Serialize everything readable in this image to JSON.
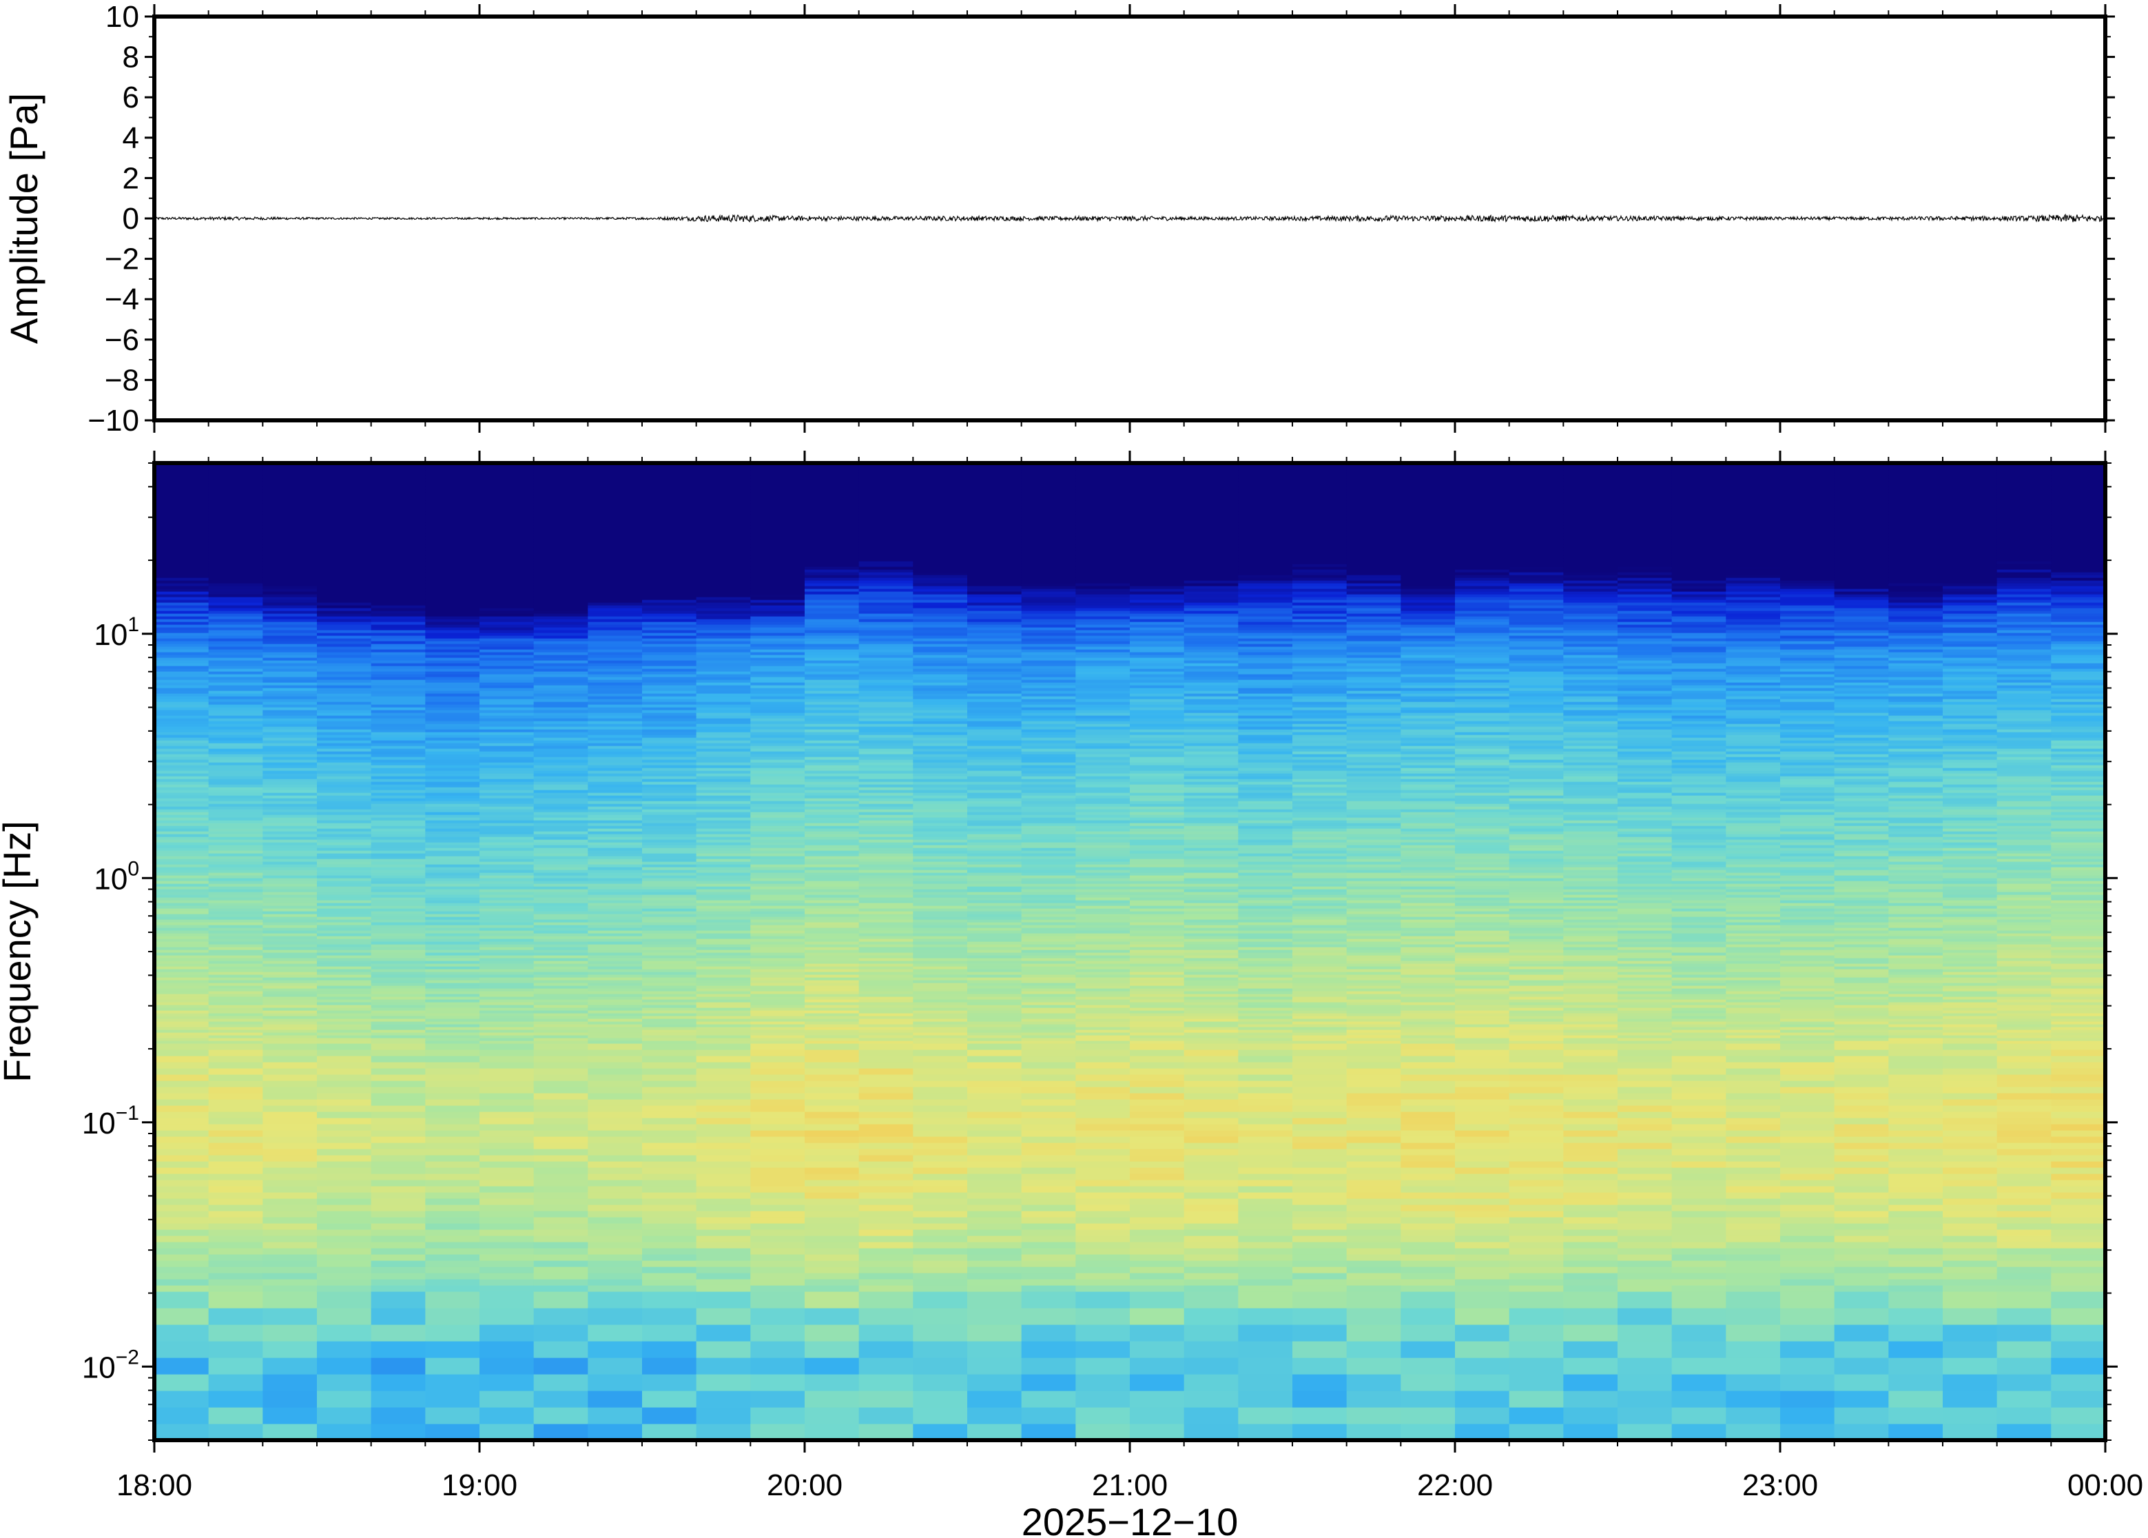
{
  "chart_data": [
    {
      "type": "line",
      "ylabel": "Amplitude [Pa]",
      "ylim": [
        -10,
        10
      ],
      "yticks": [
        10,
        8,
        6,
        4,
        2,
        0,
        -2,
        -4,
        -6,
        -8,
        -10
      ],
      "ytick_labels": [
        "10",
        "8",
        "6",
        "4",
        "2",
        "0",
        "−2",
        "−4",
        "−6",
        "−8",
        "−10"
      ],
      "xlim": [
        "18:00",
        "00:00"
      ],
      "grid": false,
      "series_color": "#000000",
      "noise_envelope": {
        "x_hours": [
          18.0,
          18.25,
          18.5,
          18.75,
          19.0,
          19.25,
          19.5,
          19.6,
          19.7,
          19.8,
          19.9,
          20.0,
          20.25,
          20.5,
          20.75,
          21.0,
          21.25,
          21.5,
          21.75,
          22.0,
          22.25,
          22.5,
          22.75,
          23.0,
          23.25,
          23.5,
          23.75,
          23.9,
          24.0
        ],
        "amplitude_pa": [
          0.06,
          0.08,
          0.05,
          0.05,
          0.05,
          0.05,
          0.06,
          0.08,
          0.16,
          0.18,
          0.14,
          0.12,
          0.1,
          0.12,
          0.1,
          0.12,
          0.08,
          0.1,
          0.14,
          0.14,
          0.16,
          0.12,
          0.1,
          0.08,
          0.08,
          0.1,
          0.12,
          0.2,
          0.14
        ]
      }
    },
    {
      "type": "heatmap",
      "ylabel": "Frequency [Hz]",
      "xlabel": "2025−12−10",
      "yscale": "log",
      "ylim_hz": [
        0.005,
        50
      ],
      "ytick_values": [
        10,
        1,
        0.1,
        0.01
      ],
      "ytick_base": [
        "10",
        "10",
        "10",
        "10"
      ],
      "ytick_exponents": [
        "1",
        "0",
        "−1",
        "−2"
      ],
      "xtick_labels": [
        "18:00",
        "19:00",
        "20:00",
        "21:00",
        "22:00",
        "23:00",
        "00:00"
      ],
      "xtick_hours": [
        18,
        19,
        20,
        21,
        22,
        23,
        24
      ],
      "colormap": [
        "#0c057c",
        "#0a23d6",
        "#1e78f0",
        "#37b4f0",
        "#6ed8d2",
        "#aae6a0",
        "#e6e678",
        "#f5c850"
      ],
      "background_color": "#0c057c",
      "columns": 36,
      "band_profile_hz": [
        0.006,
        0.01,
        0.02,
        0.04,
        0.08,
        0.15,
        0.3,
        1,
        3,
        8,
        12,
        20
      ],
      "band_profile_level": [
        3.4,
        3.3,
        4.6,
        5.4,
        5.8,
        5.6,
        5.1,
        4.2,
        3.3,
        2.2,
        1.2,
        0.3
      ],
      "cutoff_hz_by_column": [
        13,
        12,
        11,
        10,
        10,
        9,
        9,
        9,
        11,
        11,
        10,
        10,
        14,
        15,
        14,
        12,
        12,
        11,
        11,
        12,
        14,
        15,
        13,
        11,
        13,
        14,
        13,
        14,
        13,
        14,
        13,
        12,
        11,
        12,
        14,
        13
      ],
      "activity_by_column": [
        0.4,
        0.3,
        0.1,
        -0.2,
        -0.4,
        -0.6,
        -0.4,
        -0.3,
        -0.2,
        -0.1,
        0.3,
        0.6,
        0.9,
        0.8,
        0.5,
        0.3,
        0.3,
        0.5,
        0.7,
        0.6,
        0.2,
        0.5,
        0.6,
        0.7,
        0.8,
        0.7,
        0.6,
        0.4,
        0.2,
        0.3,
        0.3,
        0.4,
        0.5,
        0.6,
        0.8,
        0.9
      ]
    }
  ]
}
